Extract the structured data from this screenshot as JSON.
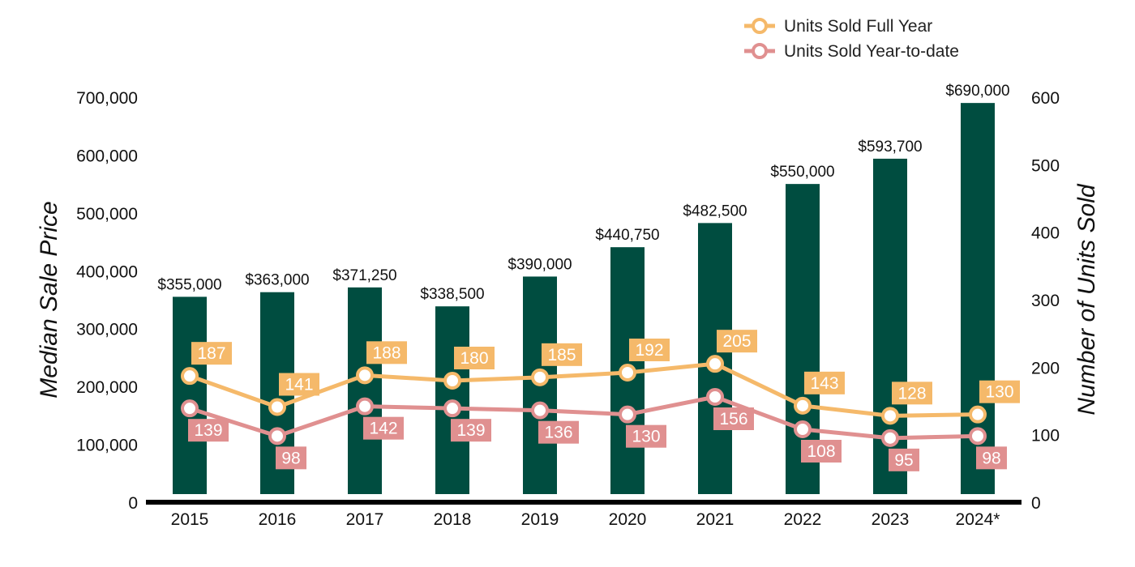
{
  "chart_data": {
    "type": "bar",
    "categories": [
      "2015",
      "2016",
      "2017",
      "2018",
      "2019",
      "2020",
      "2021",
      "2022",
      "2023",
      "2024*"
    ],
    "series": [
      {
        "name": "",
        "kind": "bar",
        "axis": "left",
        "color": "#004d40",
        "values": [
          355000,
          363000,
          371250,
          338500,
          390000,
          440750,
          482500,
          550000,
          593700,
          690000
        ],
        "labels": [
          "$355,000",
          "$363,000",
          "$371,250",
          "$338,500",
          "$390,000",
          "$440,750",
          "$482,500",
          "$550,000",
          "$593,700",
          "$690,000"
        ]
      },
      {
        "name": "Units Sold Full Year",
        "kind": "line",
        "axis": "right",
        "color": "#f5b96a",
        "values": [
          187,
          141,
          188,
          180,
          185,
          192,
          205,
          143,
          128,
          130
        ],
        "labels": [
          "187",
          "141",
          "188",
          "180",
          "185",
          "192",
          "205",
          "143",
          "128",
          "130"
        ],
        "label_position": "above"
      },
      {
        "name": "Units Sold Year-to-date",
        "kind": "line",
        "axis": "right",
        "color": "#e09090",
        "values": [
          139,
          98,
          142,
          139,
          136,
          130,
          156,
          108,
          95,
          98
        ],
        "labels": [
          "139",
          "98",
          "142",
          "139",
          "136",
          "130",
          "156",
          "108",
          "95",
          "98"
        ],
        "label_position": "below"
      }
    ],
    "ylabel": "Median Sale Price",
    "y2label": "Number of Units Sold",
    "ylim": [
      0,
      700000
    ],
    "y2lim": [
      0,
      600
    ],
    "yticks": [
      0,
      100000,
      200000,
      300000,
      400000,
      500000,
      600000,
      700000
    ],
    "yticklabels": [
      "0",
      "100,000",
      "200,000",
      "300,000",
      "400,000",
      "500,000",
      "600,000",
      "700,000"
    ],
    "y2ticks": [
      0,
      100,
      200,
      300,
      400,
      500,
      600
    ],
    "y2ticklabels": [
      "0",
      "100",
      "200",
      "300",
      "400",
      "500",
      "600"
    ],
    "grid": false,
    "legend": "top-right"
  }
}
